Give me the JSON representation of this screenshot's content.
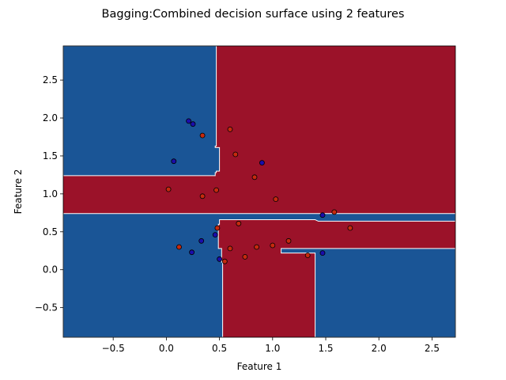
{
  "chart_data": {
    "type": "scatter",
    "title": "Bagging:Combined decision surface using 2 features",
    "xlabel": "Feature 1",
    "ylabel": "Feature 2",
    "xlim": [
      -0.97,
      2.72
    ],
    "ylim": [
      -0.89,
      2.95
    ],
    "xticks": [
      -0.5,
      0.0,
      0.5,
      1.0,
      1.5,
      2.0,
      2.5
    ],
    "xtick_labels": [
      "−0.5",
      "0.0",
      "0.5",
      "1.0",
      "1.5",
      "2.0",
      "2.5"
    ],
    "yticks": [
      -0.5,
      0.0,
      0.5,
      1.0,
      1.5,
      2.0,
      2.5
    ],
    "ytick_labels": [
      "−0.5",
      "0.0",
      "0.5",
      "1.0",
      "1.5",
      "2.0",
      "2.5"
    ],
    "grid": false,
    "colors": {
      "class_0_region": "#1a5596",
      "class_1_region": "#9b1229",
      "class_0_point": "#1a0dab",
      "class_1_point": "#c62a0e",
      "boundary": "#ffffff"
    },
    "decision_regions": {
      "class_0": [
        [
          [
            -0.97,
            1.24
          ],
          [
            0.46,
            1.24
          ],
          [
            0.46,
            1.28
          ],
          [
            0.47,
            1.28
          ],
          [
            0.47,
            1.3
          ],
          [
            0.5,
            1.3
          ],
          [
            0.5,
            1.39
          ],
          [
            0.5,
            1.61
          ],
          [
            0.46,
            1.61
          ],
          [
            0.46,
            1.63
          ],
          [
            0.47,
            1.63
          ],
          [
            0.47,
            2.95
          ],
          [
            -0.97,
            2.95
          ]
        ],
        [
          [
            -0.97,
            0.74
          ],
          [
            2.72,
            0.74
          ],
          [
            2.72,
            0.64
          ],
          [
            1.43,
            0.64
          ],
          [
            1.4,
            0.66
          ],
          [
            0.5,
            0.66
          ],
          [
            0.5,
            0.6
          ],
          [
            0.49,
            0.6
          ],
          [
            0.49,
            0.28
          ],
          [
            0.52,
            0.28
          ],
          [
            0.52,
            0.1
          ],
          [
            0.53,
            0.1
          ],
          [
            0.53,
            -0.89
          ],
          [
            -0.97,
            -0.89
          ]
        ],
        [
          [
            1.4,
            -0.89
          ],
          [
            2.72,
            -0.89
          ],
          [
            2.72,
            0.28
          ],
          [
            1.08,
            0.28
          ],
          [
            1.08,
            0.22
          ],
          [
            1.4,
            0.22
          ]
        ]
      ]
    },
    "series": [
      {
        "class": 0,
        "points": [
          [
            0.21,
            1.96
          ],
          [
            0.25,
            1.92
          ],
          [
            0.07,
            1.43
          ],
          [
            0.9,
            1.41
          ],
          [
            1.47,
            0.72
          ],
          [
            0.46,
            0.46
          ],
          [
            0.33,
            0.38
          ],
          [
            0.24,
            0.23
          ],
          [
            0.5,
            0.14
          ],
          [
            1.47,
            0.22
          ]
        ]
      },
      {
        "class": 1,
        "points": [
          [
            0.6,
            1.85
          ],
          [
            0.34,
            1.77
          ],
          [
            0.65,
            1.52
          ],
          [
            0.83,
            1.22
          ],
          [
            0.02,
            1.06
          ],
          [
            0.47,
            1.05
          ],
          [
            0.34,
            0.97
          ],
          [
            1.03,
            0.93
          ],
          [
            1.58,
            0.76
          ],
          [
            0.68,
            0.61
          ],
          [
            1.73,
            0.55
          ],
          [
            0.48,
            0.55
          ],
          [
            1.15,
            0.38
          ],
          [
            0.12,
            0.3
          ],
          [
            0.85,
            0.3
          ],
          [
            1.0,
            0.32
          ],
          [
            0.6,
            0.28
          ],
          [
            1.33,
            0.19
          ],
          [
            0.74,
            0.17
          ],
          [
            0.55,
            0.11
          ]
        ]
      }
    ]
  }
}
